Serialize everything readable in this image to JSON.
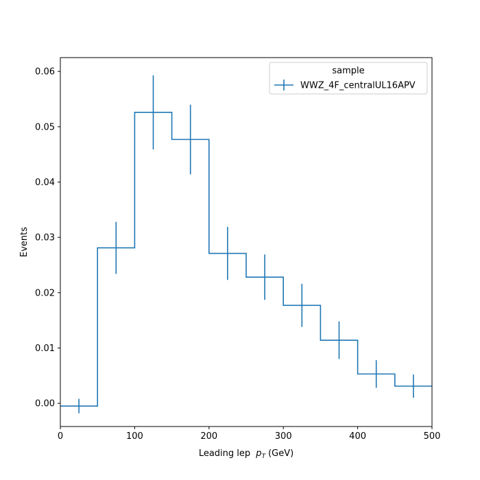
{
  "chart_data": {
    "type": "histogram",
    "xlabel": "Leading lep",
    "xlabel_sub": "p",
    "xlabel_subscript": "T",
    "xlabel_unit": "(GeV)",
    "ylabel": "Events",
    "xlim": [
      0,
      500
    ],
    "ylim": [
      -0.0042,
      0.0625
    ],
    "xticks": [
      0,
      100,
      200,
      300,
      400,
      500
    ],
    "xtick_labels": [
      "0",
      "100",
      "200",
      "300",
      "400",
      "500"
    ],
    "yticks": [
      0.0,
      0.01,
      0.02,
      0.03,
      0.04,
      0.05,
      0.06
    ],
    "ytick_labels": [
      "0.00",
      "0.01",
      "0.02",
      "0.03",
      "0.04",
      "0.05",
      "0.06"
    ],
    "grid": false,
    "legend": {
      "title": "sample",
      "placement": "top-right"
    },
    "bin_edges": [
      0,
      50,
      100,
      150,
      200,
      250,
      300,
      350,
      400,
      450,
      500
    ],
    "series": [
      {
        "name": "WWZ_4F_centralUL16APV",
        "color": "#1f77b4",
        "values": [
          -0.0005,
          0.0281,
          0.0526,
          0.0477,
          0.0271,
          0.0228,
          0.0177,
          0.0114,
          0.0053,
          0.0031
        ],
        "errors": [
          0.0013,
          0.0047,
          0.0067,
          0.0063,
          0.0048,
          0.0041,
          0.0039,
          0.0034,
          0.0025,
          0.0021
        ]
      }
    ]
  }
}
